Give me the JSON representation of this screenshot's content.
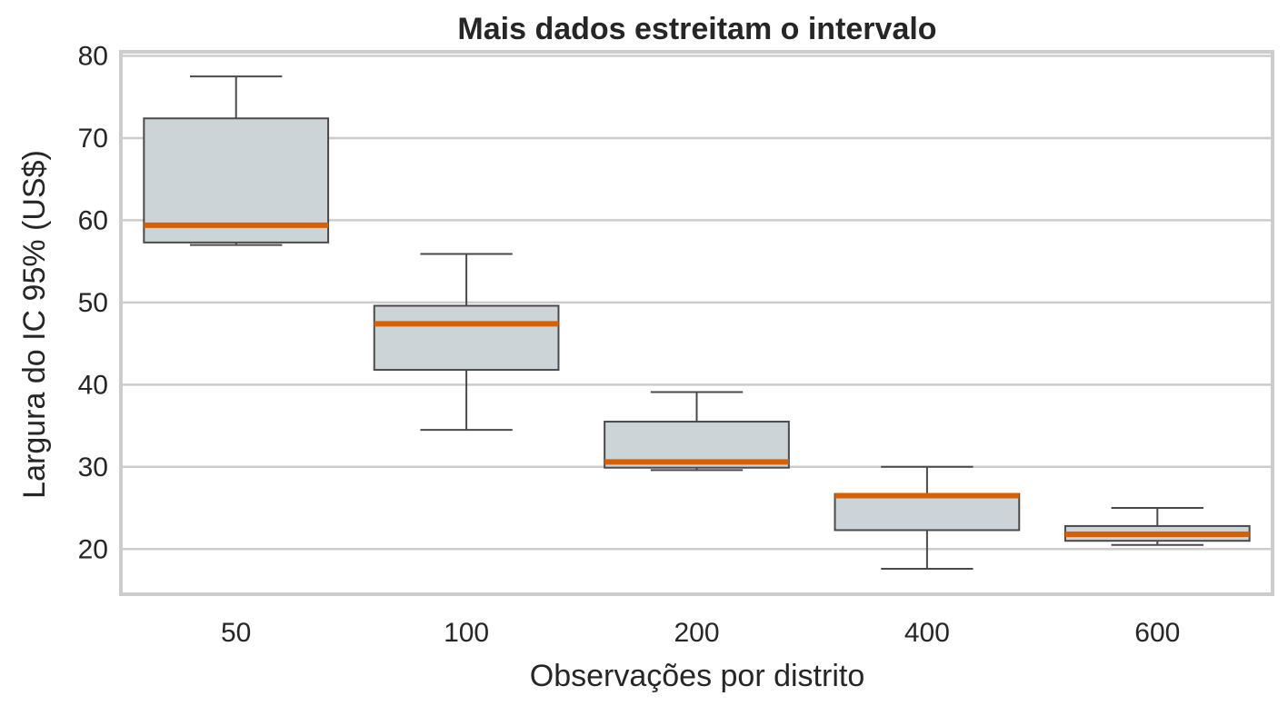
{
  "chart_data": {
    "type": "box",
    "title": "Mais dados estreitam o intervalo",
    "xlabel": "Observações por distrito",
    "ylabel": "Largura do IC 95% (US$)",
    "ylim": [
      14.5,
      80.5
    ],
    "yticks": [
      20,
      30,
      40,
      50,
      60,
      70,
      80
    ],
    "ytick_labels": [
      "20",
      "30",
      "40",
      "50",
      "60",
      "70",
      "80"
    ],
    "categories": [
      "50",
      "100",
      "200",
      "400",
      "600"
    ],
    "boxes": [
      {
        "category": "50",
        "whisker_low": 57.0,
        "q1": 57.3,
        "median": 59.4,
        "q3": 72.4,
        "whisker_high": 77.5
      },
      {
        "category": "100",
        "whisker_low": 34.5,
        "q1": 41.8,
        "median": 47.4,
        "q3": 49.6,
        "whisker_high": 55.9
      },
      {
        "category": "200",
        "whisker_low": 29.6,
        "q1": 29.9,
        "median": 30.6,
        "q3": 35.5,
        "whisker_high": 39.1
      },
      {
        "category": "400",
        "whisker_low": 17.6,
        "q1": 22.3,
        "median": 26.5,
        "q3": 26.7,
        "whisker_high": 30.0
      },
      {
        "category": "600",
        "whisker_low": 20.5,
        "q1": 21.0,
        "median": 21.8,
        "q3": 22.8,
        "whisker_high": 25.0
      }
    ],
    "grid": true,
    "legend": "none",
    "colors": {
      "box_fill": "#ccd4d8",
      "box_edge": "#4a4a4a",
      "median": "#d95f02",
      "grid": "#cccccc",
      "frame": "#cccccc",
      "text": "#262626"
    }
  }
}
